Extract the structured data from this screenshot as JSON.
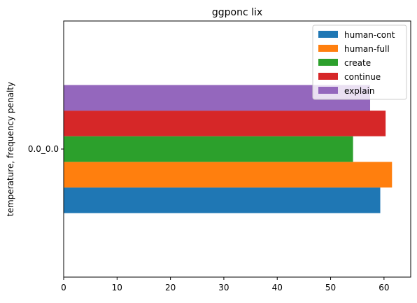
{
  "chart_data": {
    "type": "bar",
    "orientation": "horizontal",
    "title": "ggponc lix",
    "xlabel": "",
    "ylabel": "temperature, frequency penalty",
    "categories": [
      "0.0_0.0"
    ],
    "xlim": [
      0,
      65
    ],
    "xticks": [
      "0",
      "10",
      "20",
      "30",
      "40",
      "50",
      "60"
    ],
    "grid": false,
    "legend_position": "top-right",
    "series": [
      {
        "name": "human-cont",
        "values": [
          59.3
        ],
        "color": "#1f77b4"
      },
      {
        "name": "human-full",
        "values": [
          61.5
        ],
        "color": "#ff7f0e"
      },
      {
        "name": "create",
        "values": [
          54.2
        ],
        "color": "#2ca02c"
      },
      {
        "name": "continue",
        "values": [
          60.3
        ],
        "color": "#d62728"
      },
      {
        "name": "explain",
        "values": [
          57.4
        ],
        "color": "#9467bd"
      }
    ]
  }
}
